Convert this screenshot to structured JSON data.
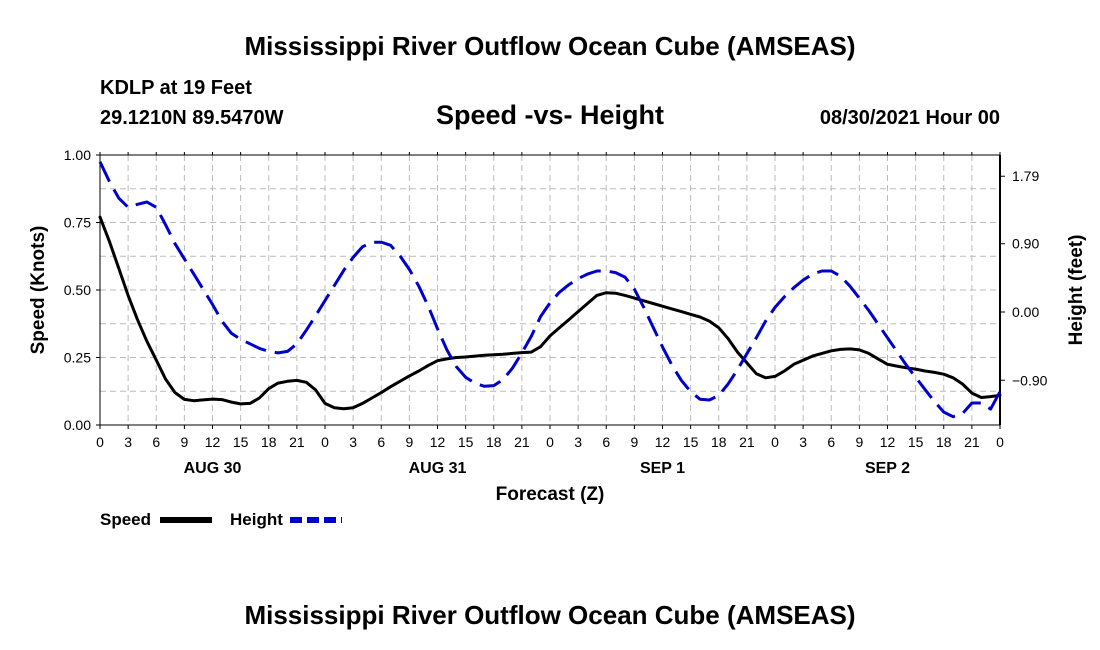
{
  "header": {
    "title": "Mississippi River Outflow Ocean Cube (AMSEAS)",
    "station": "KDLP at 19 Feet",
    "coords": "29.1210N  89.5470W",
    "subtitle": "Speed -vs- Height",
    "datetime": "08/30/2021 Hour 00"
  },
  "footer": {
    "title": "Mississippi River Outflow Ocean Cube (AMSEAS)"
  },
  "legend": {
    "speed_label": "Speed",
    "height_label": "Height"
  },
  "colors": {
    "speed": "#000000",
    "height": "#0000cc",
    "grid": "#bbbbbb"
  },
  "chart_data": {
    "type": "line",
    "title": "Speed -vs- Height",
    "xlabel": "Forecast (Z)",
    "ylabel": "Speed (Knots)",
    "y2label": "Height (feet)",
    "grid": true,
    "legend_position": "below-left",
    "xlim": [
      0,
      96
    ],
    "ylim": [
      0,
      1.0
    ],
    "y2lim": [
      -1.49,
      2.07
    ],
    "x_ticks": [
      0,
      3,
      6,
      9,
      12,
      15,
      18,
      21,
      24,
      27,
      30,
      33,
      36,
      39,
      42,
      45,
      48,
      51,
      54,
      57,
      60,
      63,
      66,
      69,
      72,
      75,
      78,
      81,
      84,
      87,
      90,
      93,
      96
    ],
    "x_tick_labels": [
      "0",
      "3",
      "6",
      "9",
      "12",
      "15",
      "18",
      "21",
      "0",
      "3",
      "6",
      "9",
      "12",
      "15",
      "18",
      "21",
      "0",
      "3",
      "6",
      "9",
      "12",
      "15",
      "18",
      "21",
      "0",
      "3",
      "6",
      "9",
      "12",
      "15",
      "18",
      "21",
      "0"
    ],
    "day_labels": [
      {
        "label": "AUG 30",
        "x": 12
      },
      {
        "label": "AUG 31",
        "x": 36
      },
      {
        "label": "SEP 1",
        "x": 60
      },
      {
        "label": "SEP 2",
        "x": 84
      }
    ],
    "y_ticks": [
      0,
      0.25,
      0.5,
      0.75,
      1.0
    ],
    "y_tick_labels": [
      "0.00",
      "0.25",
      "0.50",
      "0.75",
      "1.00"
    ],
    "y2_ticks": [
      1.79,
      0.9,
      0.0,
      -0.9
    ],
    "y2_tick_labels": [
      "1.79",
      "0.90",
      "0.00",
      "−0.90"
    ],
    "series": [
      {
        "name": "Speed",
        "axis": "left",
        "style": "solid",
        "x": [
          0,
          1,
          2,
          3,
          4,
          5,
          6,
          7,
          8,
          9,
          10,
          11,
          12,
          13,
          14,
          15,
          16,
          17,
          18,
          19,
          20,
          21,
          22,
          23,
          24,
          25,
          26,
          27,
          28,
          29,
          30,
          31,
          32,
          33,
          34,
          35,
          36,
          37,
          38,
          39,
          40,
          41,
          42,
          43,
          44,
          45,
          46,
          47,
          48,
          49,
          50,
          51,
          52,
          53,
          54,
          55,
          56,
          57,
          58,
          59,
          60,
          61,
          62,
          63,
          64,
          65,
          66,
          67,
          68,
          69,
          70,
          71,
          72,
          73,
          74,
          75,
          76,
          77,
          78,
          79,
          80,
          81,
          82,
          83,
          84,
          85,
          86,
          87,
          88,
          89,
          90,
          91,
          92,
          93,
          94,
          95,
          96
        ],
        "values": [
          0.77,
          0.68,
          0.58,
          0.48,
          0.39,
          0.31,
          0.24,
          0.17,
          0.12,
          0.095,
          0.09,
          0.093,
          0.096,
          0.094,
          0.085,
          0.078,
          0.08,
          0.1,
          0.135,
          0.155,
          0.162,
          0.165,
          0.158,
          0.13,
          0.08,
          0.064,
          0.06,
          0.064,
          0.08,
          0.1,
          0.12,
          0.142,
          0.162,
          0.182,
          0.2,
          0.22,
          0.238,
          0.245,
          0.25,
          0.252,
          0.255,
          0.258,
          0.26,
          0.262,
          0.265,
          0.268,
          0.27,
          0.29,
          0.33,
          0.36,
          0.39,
          0.42,
          0.45,
          0.48,
          0.49,
          0.488,
          0.48,
          0.47,
          0.46,
          0.45,
          0.44,
          0.43,
          0.42,
          0.41,
          0.4,
          0.385,
          0.36,
          0.32,
          0.27,
          0.23,
          0.19,
          0.175,
          0.18,
          0.2,
          0.225,
          0.24,
          0.255,
          0.265,
          0.275,
          0.28,
          0.282,
          0.278,
          0.265,
          0.245,
          0.225,
          0.218,
          0.212,
          0.207,
          0.2,
          0.195,
          0.188,
          0.175,
          0.152,
          0.118,
          0.102,
          0.105,
          0.11
        ]
      },
      {
        "name": "Height",
        "axis": "right",
        "style": "dashed",
        "x": [
          0,
          1,
          2,
          3,
          4,
          5,
          6,
          7,
          8,
          9,
          10,
          11,
          12,
          13,
          14,
          15,
          16,
          17,
          18,
          19,
          20,
          21,
          22,
          23,
          24,
          25,
          26,
          27,
          28,
          29,
          30,
          31,
          32,
          33,
          34,
          35,
          36,
          37,
          38,
          39,
          40,
          41,
          42,
          43,
          44,
          45,
          46,
          47,
          48,
          49,
          50,
          51,
          52,
          53,
          54,
          55,
          56,
          57,
          58,
          59,
          60,
          61,
          62,
          63,
          64,
          65,
          66,
          67,
          68,
          69,
          70,
          71,
          72,
          73,
          74,
          75,
          76,
          77,
          78,
          79,
          80,
          81,
          82,
          83,
          84,
          85,
          86,
          87,
          88,
          89,
          90,
          91,
          92,
          93,
          94,
          95,
          96
        ],
        "values": [
          1.98,
          1.72,
          1.5,
          1.38,
          1.42,
          1.45,
          1.38,
          1.15,
          0.9,
          0.7,
          0.5,
          0.3,
          0.1,
          -0.12,
          -0.28,
          -0.36,
          -0.42,
          -0.48,
          -0.52,
          -0.54,
          -0.52,
          -0.42,
          -0.24,
          -0.05,
          0.15,
          0.35,
          0.55,
          0.72,
          0.86,
          0.92,
          0.92,
          0.88,
          0.74,
          0.56,
          0.34,
          0.08,
          -0.22,
          -0.5,
          -0.72,
          -0.86,
          -0.94,
          -0.98,
          -0.97,
          -0.89,
          -0.74,
          -0.54,
          -0.32,
          -0.06,
          0.12,
          0.26,
          0.36,
          0.44,
          0.5,
          0.54,
          0.54,
          0.52,
          0.46,
          0.3,
          0.06,
          -0.2,
          -0.46,
          -0.7,
          -0.9,
          -1.05,
          -1.15,
          -1.16,
          -1.1,
          -0.95,
          -0.76,
          -0.55,
          -0.34,
          -0.12,
          0.06,
          0.2,
          0.32,
          0.42,
          0.5,
          0.54,
          0.54,
          0.47,
          0.34,
          0.18,
          0.02,
          -0.16,
          -0.34,
          -0.52,
          -0.7,
          -0.86,
          -1.02,
          -1.18,
          -1.32,
          -1.38,
          -1.34,
          -1.2,
          -1.2,
          -1.28,
          -1.05
        ]
      }
    ]
  }
}
